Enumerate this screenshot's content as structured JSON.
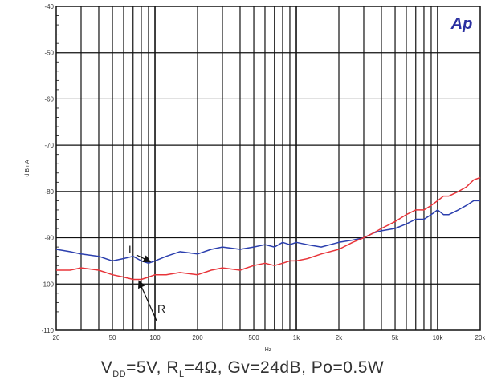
{
  "chart_data": {
    "type": "line",
    "title": "",
    "xlabel": "Hz",
    "ylabel": "d B r A",
    "x_scale": "log",
    "xlim": [
      20,
      20000
    ],
    "ylim": [
      -110,
      -40
    ],
    "grid": true,
    "x_ticks": [
      {
        "value": 20,
        "label": "20"
      },
      {
        "value": 50,
        "label": "50"
      },
      {
        "value": 100,
        "label": "100"
      },
      {
        "value": 200,
        "label": "200"
      },
      {
        "value": 500,
        "label": "500"
      },
      {
        "value": 1000,
        "label": "1k"
      },
      {
        "value": 2000,
        "label": "2k"
      },
      {
        "value": 5000,
        "label": "5k"
      },
      {
        "value": 10000,
        "label": "10k"
      },
      {
        "value": 20000,
        "label": "20k"
      }
    ],
    "y_ticks": [
      {
        "value": -40,
        "label": "-40"
      },
      {
        "value": -50,
        "label": "-50"
      },
      {
        "value": -60,
        "label": "-60"
      },
      {
        "value": -70,
        "label": "-70"
      },
      {
        "value": -80,
        "label": "-80"
      },
      {
        "value": -90,
        "label": "-90"
      },
      {
        "value": -100,
        "label": "-100"
      },
      {
        "value": -110,
        "label": "-110"
      }
    ],
    "series": [
      {
        "name": "L",
        "color": "#2b3fae",
        "x": [
          20,
          25,
          30,
          40,
          50,
          60,
          70,
          80,
          90,
          100,
          120,
          150,
          200,
          250,
          300,
          400,
          500,
          600,
          700,
          800,
          900,
          1000,
          1200,
          1500,
          2000,
          2500,
          3000,
          3500,
          4000,
          5000,
          6000,
          7000,
          8000,
          9000,
          10000,
          11000,
          12000,
          14000,
          16000,
          18000,
          20000
        ],
        "y": [
          -92.5,
          -93,
          -93.5,
          -94,
          -95,
          -94.5,
          -94,
          -95,
          -95.5,
          -95,
          -94,
          -93,
          -93.5,
          -92.5,
          -92,
          -92.5,
          -92,
          -91.5,
          -92,
          -91,
          -91.5,
          -91,
          -91.5,
          -92,
          -91,
          -90.5,
          -90,
          -89,
          -88.5,
          -88,
          -87,
          -86,
          -86,
          -85,
          -84,
          -85,
          -85,
          -84,
          -83,
          -82,
          -82
        ]
      },
      {
        "name": "R",
        "color": "#e8353a",
        "x": [
          20,
          25,
          30,
          40,
          50,
          60,
          70,
          80,
          90,
          100,
          120,
          150,
          200,
          250,
          300,
          400,
          500,
          600,
          700,
          800,
          900,
          1000,
          1200,
          1500,
          2000,
          2500,
          3000,
          3500,
          4000,
          5000,
          6000,
          7000,
          8000,
          9000,
          10000,
          11000,
          12000,
          14000,
          16000,
          18000,
          20000
        ],
        "y": [
          -97,
          -97,
          -96.5,
          -97,
          -98,
          -98.5,
          -99,
          -99,
          -98.5,
          -98,
          -98,
          -97.5,
          -98,
          -97,
          -96.5,
          -97,
          -96,
          -95.5,
          -96,
          -95.5,
          -95,
          -95,
          -94.5,
          -93.5,
          -92.5,
          -91,
          -90,
          -89,
          -88,
          -86.5,
          -85,
          -84,
          -84,
          -83,
          -82,
          -81,
          -81,
          -80,
          -79,
          -77.5,
          -77
        ]
      }
    ],
    "annotations": [
      {
        "text": "L",
        "series": "L"
      },
      {
        "text": "R",
        "series": "R"
      }
    ]
  },
  "logo_text": "Ap",
  "caption": {
    "vdd_main": "V",
    "vdd_sub": "DD",
    "vdd_val": "=5V, R",
    "rl_sub": "L",
    "rest": "=4Ω, Gv=24dB, Po=0.5W"
  }
}
